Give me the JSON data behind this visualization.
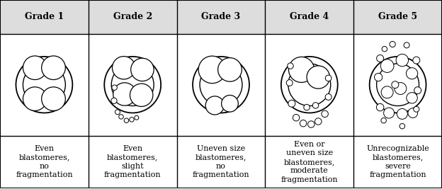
{
  "grades": [
    "Grade 1",
    "Grade 2",
    "Grade 3",
    "Grade 4",
    "Grade 5"
  ],
  "descriptions": [
    "Even\nblastomeres,\nno\nfragmentation",
    "Even\nblastomeres,\nslight\nfragmentation",
    "Uneven size\nblastomeres,\nno\nfragmentation",
    "Even or\nuneven size\nblastomeres,\nmoderate\nfragmentation",
    "Unrecognizable\nblastomeres,\nsevere\nfragmentation"
  ],
  "header_bg": "#e0e0e0",
  "grade_fontsize": 9,
  "desc_fontsize": 8
}
